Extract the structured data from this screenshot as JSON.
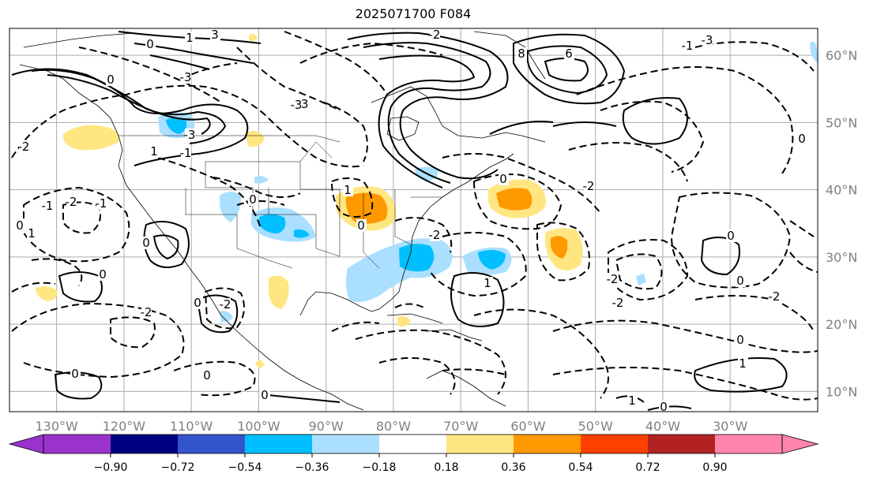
{
  "header": {
    "title": "2025071700 F084"
  },
  "map": {
    "projection": "plate-carree",
    "lon_range_deg": [
      -137,
      -17
    ],
    "lat_range_deg": [
      7,
      64
    ],
    "gridlines": true,
    "lat_labels": [
      "10°N",
      "20°N",
      "30°N",
      "40°N",
      "50°N",
      "60°N"
    ],
    "lon_labels": [
      "130°W",
      "120°W",
      "110°W",
      "100°W",
      "90°W",
      "80°W",
      "70°W",
      "60°W",
      "50°W",
      "40°W",
      "30°W"
    ],
    "contour_style": "solid = positive, dashed = negative, black",
    "contour_labels": [
      "0",
      "1",
      "2",
      "3",
      "6",
      "8",
      "-1",
      "-2",
      "-3"
    ]
  },
  "colorbar": {
    "orientation": "horizontal",
    "extend": "both",
    "ticks": [
      "−0.90",
      "−0.72",
      "−0.54",
      "−0.36",
      "−0.18",
      "0.18",
      "0.36",
      "0.54",
      "0.72",
      "0.90"
    ],
    "colors": [
      "#9933cc",
      "#000080",
      "#3355cc",
      "#00bfff",
      "#aadfff",
      "#ffffff",
      "#ffe680",
      "#ff9900",
      "#ff4000",
      "#b22222",
      "#ff85b0",
      "#ff85b0"
    ]
  }
}
